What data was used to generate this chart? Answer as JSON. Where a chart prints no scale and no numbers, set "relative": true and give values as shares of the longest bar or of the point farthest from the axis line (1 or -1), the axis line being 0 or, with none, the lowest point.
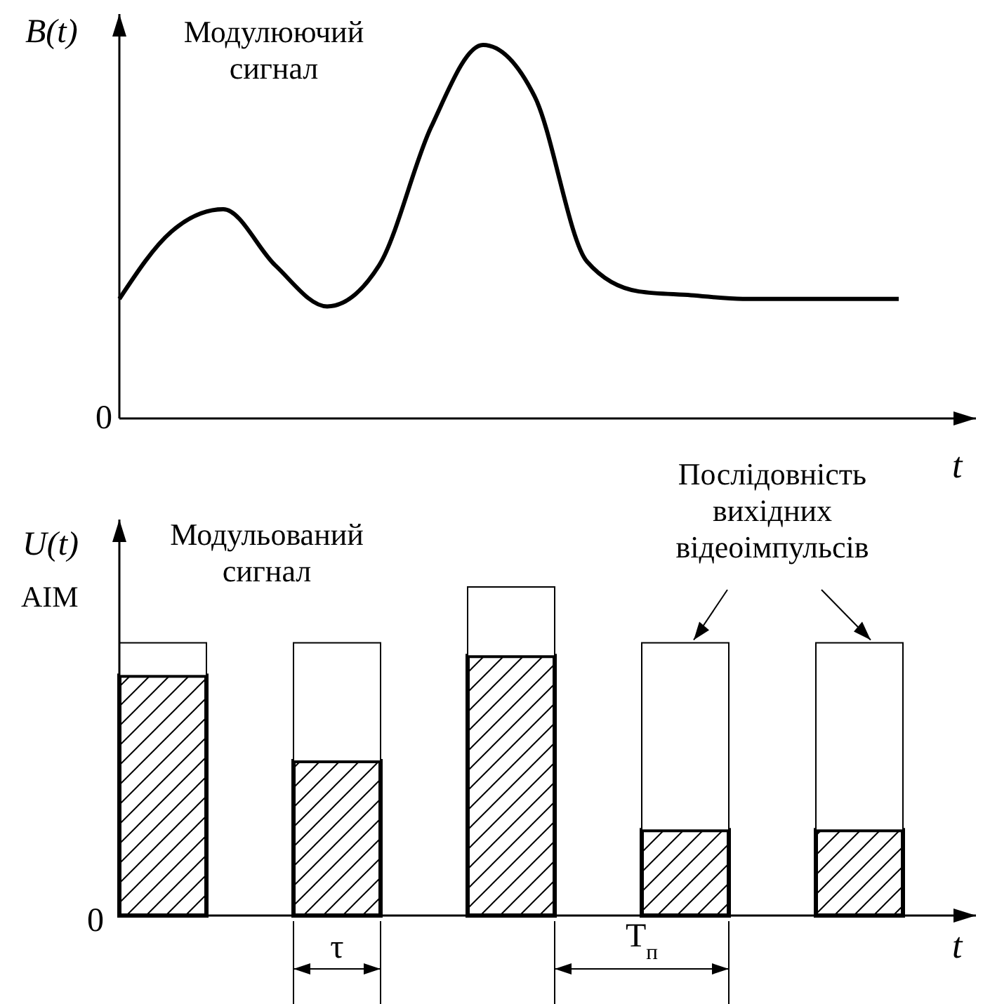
{
  "chart_data": [
    {
      "type": "line",
      "ylabel": "B(t)",
      "xlabel": "t",
      "annotations": [
        "Модулюючий сигнал",
        "0"
      ],
      "relative": true,
      "color": "#000000",
      "categories": [
        null,
        null,
        null,
        null,
        null,
        null,
        null,
        null,
        null,
        null,
        null,
        null,
        null,
        null,
        null,
        null
      ],
      "values": [
        0.32,
        0.5,
        0.56,
        0.41,
        0.3,
        0.41,
        0.78,
        1.0,
        0.86,
        0.42,
        0.34,
        0.33,
        0.32,
        0.32,
        0.32,
        0.32
      ]
    },
    {
      "type": "bar",
      "ylabel": "U(t)",
      "xlabel": "t",
      "annotations": [
        "AIM",
        "Модульований сигнал",
        "Послідовність вихідних відеоімпульсів",
        "0",
        "τ",
        "T$_{п}$"
      ],
      "relative": true,
      "categories": [
        null,
        null,
        null,
        null,
        null
      ],
      "stacked": true,
      "series": [
        {
          "color": "#000000",
          "values": [
            0.73,
            0.47,
            0.79,
            0.26,
            0.26
          ]
        },
        {
          "color": "#ffffff",
          "values": [
            0.1,
            0.36,
            0.21,
            0.57,
            0.57
          ]
        }
      ]
    }
  ]
}
